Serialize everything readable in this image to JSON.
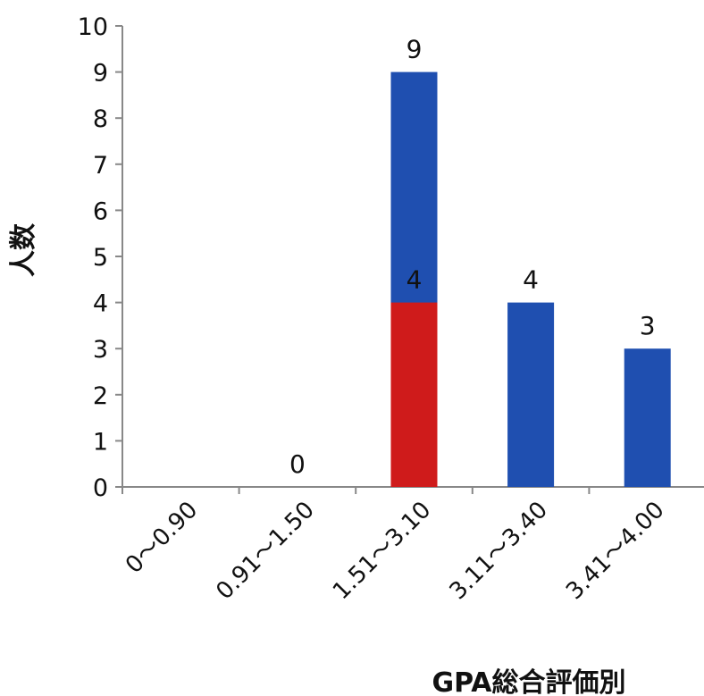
{
  "chart_data": {
    "type": "bar",
    "title": "",
    "xlabel": "GPA総合評価別",
    "ylabel": "人数",
    "ylim": [
      0,
      10
    ],
    "yticks": [
      "0",
      "1",
      "2",
      "3",
      "4",
      "5",
      "6",
      "7",
      "8",
      "9",
      "10"
    ],
    "categories": [
      "0〜0.90",
      "0.91〜1.50",
      "1.51〜3.10",
      "3.11〜3.40",
      "3.41〜4.00"
    ],
    "series": [
      {
        "color": "#1f4fb0",
        "values": [
          0,
          0,
          9,
          4,
          3
        ]
      },
      {
        "color": "#cf1b1b",
        "values": [
          0,
          0,
          4,
          0,
          0
        ]
      }
    ],
    "data_labels": [
      {
        "category_index": 1,
        "text": "0",
        "value": 0
      },
      {
        "category_index": 2,
        "text": "9",
        "value": 9
      },
      {
        "category_index": 2,
        "text": "4",
        "value": 4
      },
      {
        "category_index": 3,
        "text": "4",
        "value": 4
      },
      {
        "category_index": 4,
        "text": "3",
        "value": 3
      }
    ],
    "grid": false,
    "legend": "none"
  }
}
